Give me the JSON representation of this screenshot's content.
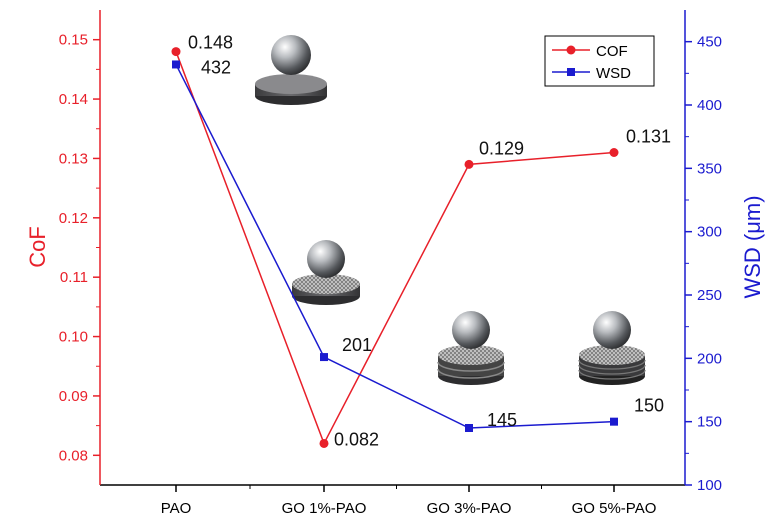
{
  "chart_data": {
    "type": "line",
    "categories": [
      "PAO",
      "GO 1%-PAO",
      "GO 3%-PAO",
      "GO 5%-PAO"
    ],
    "left_axis": {
      "label": "CoF",
      "color": "#e8202a",
      "ylim": [
        0.075,
        0.155
      ],
      "ticks": [
        "0.08",
        "0.09",
        "0.10",
        "0.11",
        "0.12",
        "0.13",
        "0.14",
        "0.15"
      ]
    },
    "right_axis": {
      "label": "WSD (μm)",
      "color": "#1b1bcf",
      "ylim": [
        100,
        475
      ],
      "ticks": [
        "100",
        "150",
        "200",
        "250",
        "300",
        "350",
        "400",
        "450"
      ]
    },
    "series": [
      {
        "name": "COF",
        "axis": "left",
        "color": "#e8202a",
        "marker": "circle",
        "values": [
          0.148,
          0.082,
          0.129,
          0.131
        ],
        "labels": [
          "0.148",
          "0.082",
          "0.129",
          "0.131"
        ]
      },
      {
        "name": "WSD",
        "axis": "right",
        "color": "#1b1bcf",
        "marker": "square",
        "values": [
          432,
          201,
          145,
          150
        ],
        "labels": [
          "432",
          "201",
          "145",
          "150"
        ]
      }
    ],
    "legend_position": "top-right",
    "grid": false,
    "insets": [
      "steel-ball-on-disc-icon",
      "ball-on-coated-disc-icon",
      "ball-on-multilayer-disc-icon",
      "ball-on-multilayer-disc-icon"
    ]
  }
}
